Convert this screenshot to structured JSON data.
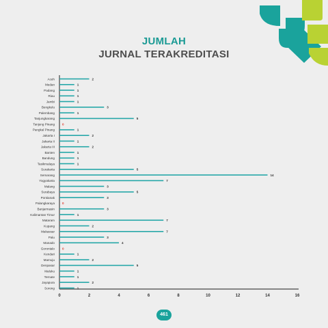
{
  "header": {
    "line1": "JUMLAH",
    "line2": "JURNAL TERAKREDITASI"
  },
  "page_number": "461",
  "colors": {
    "bar": "#25a7a8",
    "zero_label": "#e03a2c",
    "teal": "#1aa39c",
    "lime": "#b9d233",
    "axis": "#444444"
  },
  "logo": {
    "icon": "geometric-brand-logo"
  },
  "chart_data": {
    "type": "bar",
    "orientation": "horizontal",
    "categories": [
      "Aceh",
      "Medan",
      "Padang",
      "Riau",
      "Jambi",
      "Bengkulu",
      "Palembang",
      "Tanjungkarang",
      "Tanjung Pinang",
      "Pangkal Pinang",
      "Jakarta I",
      "Jakarta II",
      "Jakarta III",
      "Banten",
      "Bandung",
      "Tasikmalaya",
      "Surakarta",
      "Semarang",
      "Yogyakarta",
      "Malang",
      "Surabaya",
      "Pontianak",
      "Palangkaraya",
      "Banjarmasin",
      "Kalimantan Timur",
      "Mataram",
      "Kupang",
      "Makassar",
      "Palu",
      "Manado",
      "Gorontalo",
      "Kendari",
      "Mamuju",
      "Denpasar",
      "Maluku",
      "Ternate",
      "Jayapura",
      "Sorong"
    ],
    "values": [
      2,
      1,
      1,
      1,
      1,
      3,
      1,
      5,
      0,
      1,
      2,
      1,
      2,
      1,
      1,
      1,
      5,
      14,
      7,
      3,
      5,
      3,
      0,
      3,
      1,
      7,
      2,
      7,
      3,
      4,
      0,
      1,
      2,
      5,
      1,
      1,
      2,
      1
    ],
    "xlim": [
      0,
      16
    ],
    "xticks": [
      "0",
      "2",
      "4",
      "6",
      "8",
      "10",
      "12",
      "14",
      "16"
    ],
    "grid": false,
    "legend": "none",
    "title": "JURNAL TERAKREDITASI"
  }
}
